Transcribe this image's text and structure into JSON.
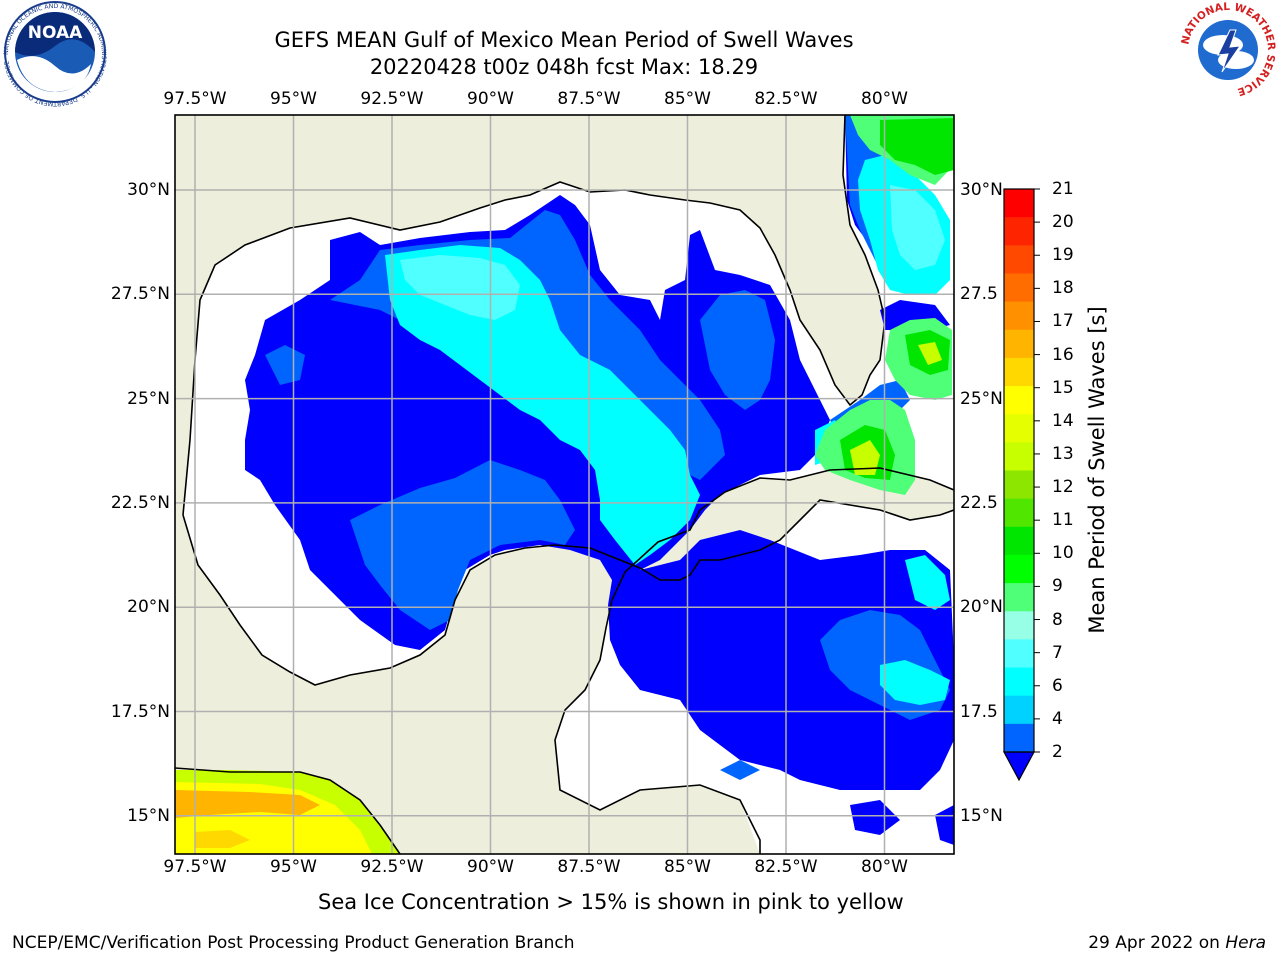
{
  "header": {
    "title_line1": "GEFS MEAN Gulf of Mexico Mean Period of Swell Waves",
    "title_line2": "20220428 t00z 048h fcst   Max: 18.29"
  },
  "map": {
    "lon_ticks": [
      "97.5°W",
      "95°W",
      "92.5°W",
      "90°W",
      "87.5°W",
      "85°W",
      "82.5°W",
      "80°W"
    ],
    "lat_ticks_left": [
      "30°N",
      "27.5°N",
      "25°N",
      "22.5°N",
      "20°N",
      "17.5°N",
      "15°N"
    ],
    "lat_ticks_right": [
      "30°N",
      "27.5",
      "25°N",
      "22.5",
      "20°N",
      "17.5",
      "15°N"
    ],
    "colors": {
      "land": "#eeeedc",
      "water_no_data": "#ffffff",
      "grid": "#b0b0b0"
    }
  },
  "colorbar": {
    "label": "Mean Period of Swell Waves [s]",
    "ticks": [
      "21",
      "20",
      "19",
      "18",
      "17",
      "16",
      "15",
      "14",
      "13",
      "12",
      "11",
      "10",
      "9",
      "8",
      "7",
      "6",
      "4",
      "2"
    ],
    "colors_top_to_bottom": [
      "#ff0000",
      "#ff2400",
      "#ff4800",
      "#ff6c00",
      "#ff9000",
      "#ffb400",
      "#ffd800",
      "#ffff00",
      "#e6ff00",
      "#c8ff00",
      "#8ce600",
      "#50e600",
      "#00e600",
      "#00ff00",
      "#50ff78",
      "#96ffe6",
      "#50ffff",
      "#00ffff",
      "#00d2ff",
      "#0064ff"
    ],
    "extend_color": "#0000ff"
  },
  "caption": "Sea Ice Concentration > 15% is shown in pink to yellow",
  "footer": {
    "left": "NCEP/EMC/Verification Post Processing Product Generation Branch",
    "right_date": "29 Apr 2022 on ",
    "right_host": "Hera"
  },
  "logos": {
    "noaa_text": "NOAA",
    "noaa_ring_text": "NATIONAL OCEANIC AND ATMOSPHERIC ADMINISTRATION · U.S. DEPARTMENT OF COMMERCE",
    "nws_ring_text": "NATIONAL WEATHER SERVICE"
  }
}
